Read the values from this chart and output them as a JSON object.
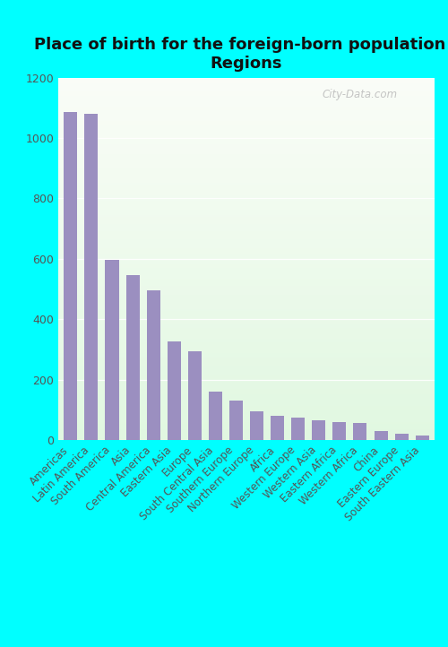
{
  "title": "Place of birth for the foreign-born population -\nRegions",
  "categories": [
    "Americas",
    "Latin America",
    "South America",
    "Asia",
    "Central America",
    "Eastern Asia",
    "Europe",
    "South Central Asia",
    "Southern Europe",
    "Northern Europe",
    "Africa",
    "Western Europe",
    "Western Asia",
    "Eastern Africa",
    "Western Africa",
    "China",
    "Eastern Europe",
    "South Eastern Asia"
  ],
  "values": [
    1085,
    1080,
    595,
    545,
    495,
    325,
    295,
    160,
    130,
    95,
    80,
    75,
    65,
    60,
    55,
    30,
    20,
    15
  ],
  "bar_color": "#9b8fc0",
  "background_outer": "#00ffff",
  "ylim": [
    0,
    1200
  ],
  "yticks": [
    0,
    200,
    400,
    600,
    800,
    1000,
    1200
  ],
  "title_fontsize": 13,
  "tick_label_fontsize": 8.5,
  "ytick_fontsize": 9,
  "watermark": "City-Data.com"
}
